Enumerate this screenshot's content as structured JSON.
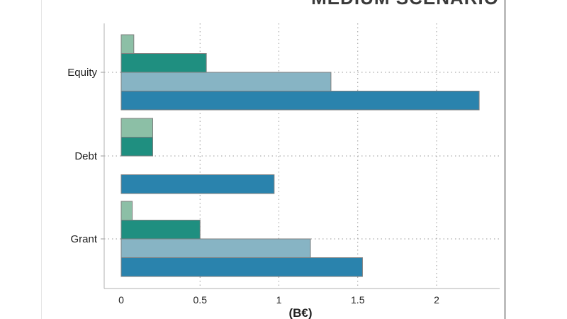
{
  "chart_data": {
    "type": "bar",
    "orientation": "horizontal",
    "title": "MEDIUM SCENARIO",
    "xlabel": "(B€)",
    "ylabel": "",
    "categories": [
      "Equity",
      "Debt",
      "Grant"
    ],
    "xlim": [
      0,
      2.4
    ],
    "xticks": [
      0,
      0.5,
      1,
      1.5,
      2
    ],
    "xtick_labels": [
      "0",
      "0.5",
      "1",
      "1.5",
      "2"
    ],
    "grid": true,
    "legend": "none",
    "series": [
      {
        "color": "#8cbfa6",
        "values": [
          0.08,
          0.2,
          0.07
        ]
      },
      {
        "color": "#1f8f80",
        "values": [
          0.54,
          0.2,
          0.5
        ]
      },
      {
        "color": "#87b4c4",
        "values": [
          1.33,
          0,
          1.2
        ]
      },
      {
        "color": "#2a83ad",
        "values": [
          2.27,
          0.97,
          1.53
        ]
      }
    ]
  }
}
